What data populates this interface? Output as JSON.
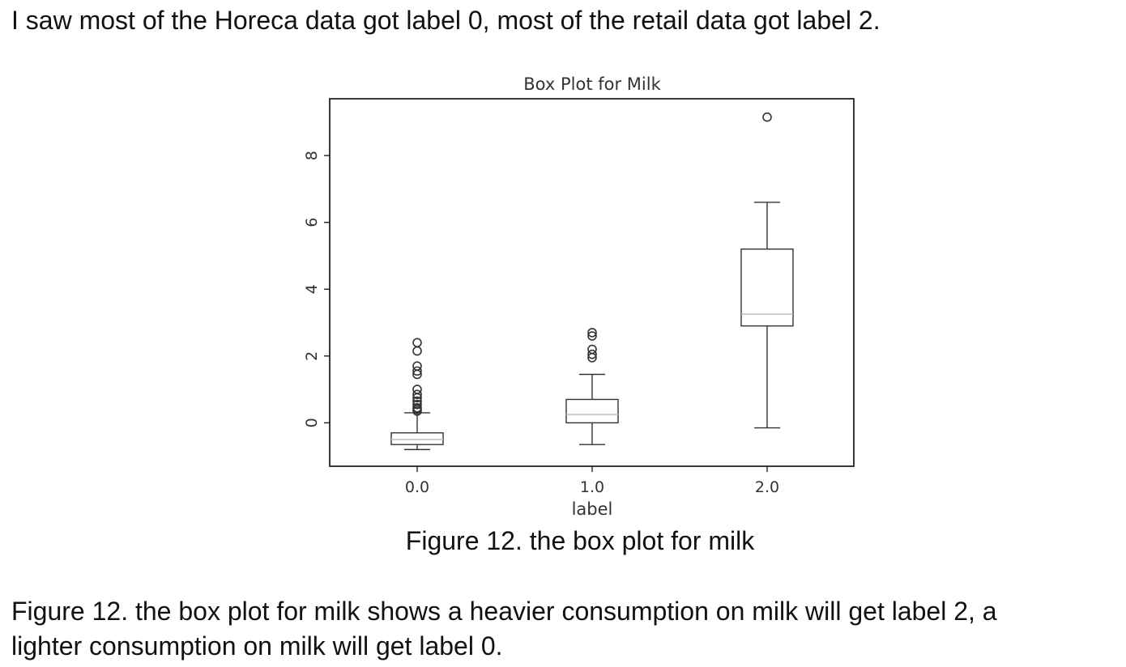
{
  "document": {
    "intro": "I saw most of the Horeca data got label 0, most of the retail data got label 2.",
    "caption": "Figure 12. the box plot for milk",
    "body_lines": [
      "Figure 12. the box plot for milk shows a heavier consumption on milk will get label 2, a",
      "lighter consumption on milk will get label 0."
    ]
  },
  "chart_data": {
    "type": "box",
    "title": "Box Plot for Milk",
    "xlabel": "label",
    "ylabel": "",
    "categories": [
      "0.0",
      "1.0",
      "2.0"
    ],
    "yticks": [
      "0",
      "2",
      "4",
      "6",
      "8"
    ],
    "ylim": [
      -1.3,
      9.7
    ],
    "grid": false,
    "colors": {
      "box": "#333333",
      "median": "#c0c0c0",
      "outlier": "#333333"
    },
    "boxes": [
      {
        "category": "0.0",
        "whisker_low": -0.8,
        "q1": -0.65,
        "median": -0.5,
        "q3": -0.3,
        "whisker_high": 0.3,
        "outliers": [
          0.35,
          0.4,
          0.45,
          0.55,
          0.65,
          0.75,
          0.85,
          1.0,
          1.45,
          1.55,
          1.7,
          2.15,
          2.4
        ]
      },
      {
        "category": "1.0",
        "whisker_low": -0.65,
        "q1": 0.0,
        "median": 0.25,
        "q3": 0.7,
        "whisker_high": 1.45,
        "outliers": [
          1.95,
          2.05,
          2.2,
          2.6,
          2.7
        ]
      },
      {
        "category": "2.0",
        "whisker_low": -0.15,
        "q1": 2.9,
        "median": 3.25,
        "q3": 5.2,
        "whisker_high": 6.6,
        "outliers": [
          9.15
        ]
      }
    ]
  }
}
